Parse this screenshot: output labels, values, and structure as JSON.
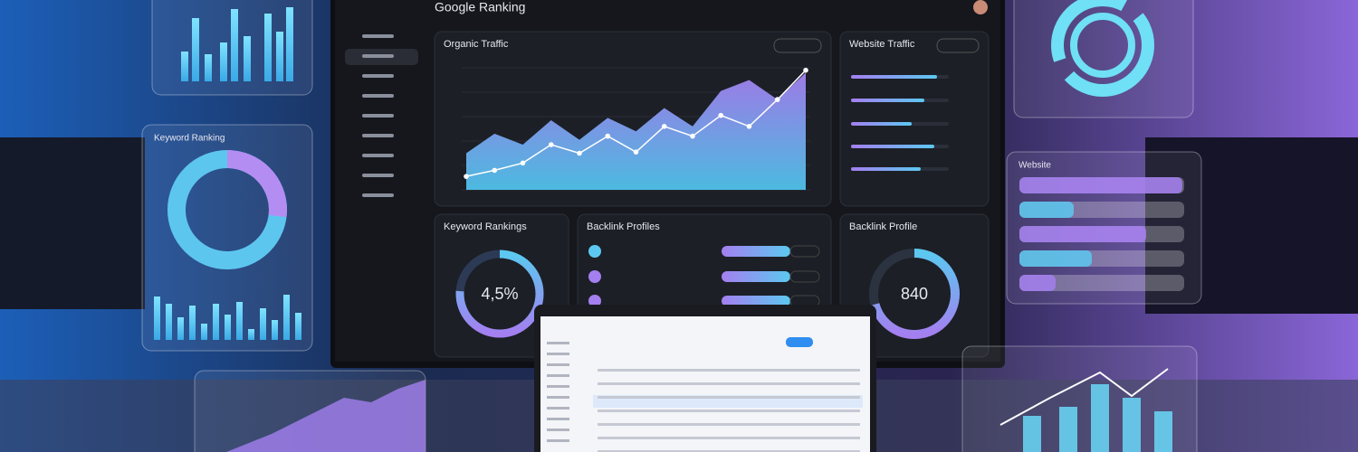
{
  "header": {
    "title": "Google Ranking"
  },
  "organic_traffic": {
    "title": "Organic Traffic",
    "area": [
      30,
      46,
      37,
      57,
      41,
      59,
      48,
      67,
      52,
      81,
      90,
      74,
      96
    ],
    "line": [
      11,
      16,
      22,
      37,
      30,
      44,
      31,
      52,
      44,
      61,
      52,
      74,
      98
    ],
    "ylim": [
      0,
      100
    ]
  },
  "website_traffic": {
    "title": "Website Traffic"
  },
  "keyword_rankings": {
    "title": "Keyword Rankings",
    "value_label": "4,5%"
  },
  "backlinks_profiles": {
    "title": "Backlink Profiles"
  },
  "backlink_profile": {
    "title": "Backlink Profile",
    "value_label": "840"
  },
  "keyword_ranking_panel": {
    "title": "Keyword Ranking"
  },
  "website_panel": {
    "title": "Website"
  }
}
